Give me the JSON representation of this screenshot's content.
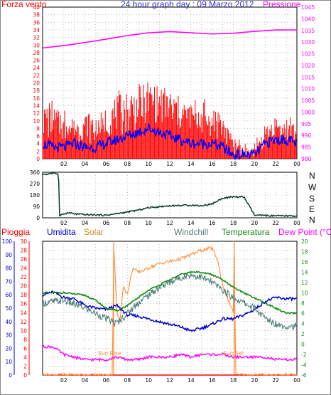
{
  "chart_data": [
    {
      "type": "line",
      "title": "24 hour graph day : 09 Marzo 2012",
      "left_label": "Forza vento",
      "right_label": "Pressione",
      "x_ticks": [
        "02",
        "04",
        "06",
        "08",
        "10",
        "12",
        "14",
        "16",
        "18",
        "20",
        "22",
        "00"
      ],
      "y_left_ticks": [
        "0",
        "2",
        "4",
        "6",
        "8",
        "10",
        "12",
        "14",
        "16",
        "18",
        "20",
        "22",
        "24",
        "26",
        "28",
        "30",
        "32",
        "34",
        "36",
        "38",
        "40"
      ],
      "y_left_range": [
        0,
        40
      ],
      "y_right_ticks": [
        "980",
        "985",
        "990",
        "995",
        "1000",
        "1005",
        "1010",
        "1015",
        "1020",
        "1025",
        "1030",
        "1035",
        "1040",
        "1045"
      ],
      "y_right_range": [
        980,
        1045
      ],
      "grid": true,
      "series": [
        {
          "role": "pressure",
          "color": "#ff00ff",
          "axis": "right",
          "x": [
            0,
            2,
            4,
            6,
            8,
            10,
            12,
            14,
            16,
            18,
            20,
            22,
            24
          ],
          "y": [
            1027.5,
            1028.5,
            1029.8,
            1031.3,
            1032.8,
            1034,
            1034.5,
            1034,
            1033.5,
            1033.8,
            1034.6,
            1035.2,
            1035.2
          ]
        },
        {
          "role": "gust",
          "color": "#ff0000",
          "axis": "left",
          "x": [
            0,
            1,
            2,
            3,
            4,
            5,
            6,
            7,
            8,
            9,
            10,
            11,
            12,
            13,
            14,
            15,
            16,
            17,
            18,
            19,
            20,
            21,
            22,
            23,
            24
          ],
          "y": [
            10,
            11,
            9,
            8,
            9,
            7,
            9,
            12,
            13,
            14,
            15,
            14,
            13,
            12,
            11,
            11,
            10,
            9,
            3,
            2,
            2,
            6,
            8,
            8,
            7
          ]
        },
        {
          "role": "average",
          "color": "#0000ff",
          "axis": "left",
          "x": [
            0,
            1,
            2,
            3,
            4,
            5,
            6,
            7,
            8,
            9,
            10,
            11,
            12,
            13,
            14,
            15,
            16,
            17,
            18,
            19,
            20,
            21,
            22,
            23,
            24
          ],
          "y": [
            4,
            3,
            3,
            4,
            3,
            3,
            4,
            5,
            6,
            7,
            8,
            7,
            6,
            5,
            4,
            4,
            4,
            3,
            1,
            1,
            1,
            4,
            5,
            5,
            4
          ]
        }
      ]
    },
    {
      "type": "line",
      "y_ticks": [
        "0",
        "90",
        "180",
        "270",
        "360"
      ],
      "y_range": [
        0,
        360
      ],
      "compass_labels": [
        "N",
        "W",
        "S",
        "E",
        "N"
      ],
      "x_ticks": [
        "02",
        "04",
        "06",
        "08",
        "10",
        "12",
        "14",
        "16",
        "18",
        "20",
        "22",
        "00"
      ],
      "grid": true,
      "series": [
        {
          "role": "direction",
          "color": "#0a3a2a",
          "x": [
            0,
            0.5,
            0.6,
            1.5,
            1.6,
            2.5,
            3,
            4,
            6,
            8,
            9,
            10,
            12,
            14,
            15,
            16,
            17,
            18,
            19,
            20,
            21,
            22,
            23,
            24
          ],
          "y": [
            345,
            345,
            350,
            350,
            20,
            40,
            30,
            25,
            20,
            45,
            60,
            80,
            95,
            100,
            95,
            110,
            155,
            165,
            165,
            20,
            18,
            15,
            15,
            15
          ]
        }
      ]
    },
    {
      "type": "line",
      "labels": [
        "Pioggia",
        "Umidita",
        "Solar",
        "Windchill",
        "Temperatura",
        "Dew Point (°C)"
      ],
      "annotations": [
        "Sun Rise",
        "Sun Set"
      ],
      "x_ticks": [
        "02",
        "04",
        "06",
        "08",
        "10",
        "12",
        "14",
        "16",
        "18",
        "20",
        "22",
        "00"
      ],
      "y_left_outer_ticks": [
        "0",
        "10",
        "20",
        "30",
        "40",
        "50",
        "60",
        "70",
        "80",
        "90",
        "100"
      ],
      "y_left_outer_range": [
        0,
        100
      ],
      "y_left_inner_ticks": [
        "0",
        "2",
        "4",
        "6",
        "8",
        "10",
        "12",
        "14",
        "16",
        "18",
        "20",
        "22",
        "24",
        "26",
        "28",
        "30"
      ],
      "y_left_inner_range": [
        0,
        30
      ],
      "y_right_ticks": [
        "-6",
        "-4",
        "-2",
        "0",
        "2",
        "4",
        "6",
        "8",
        "10",
        "12",
        "14",
        "16",
        "18",
        "20"
      ],
      "y_right_range": [
        -6,
        20
      ],
      "grid": true,
      "sun_rise_hour": 6.7,
      "sun_set_hour": 18.1,
      "series": [
        {
          "role": "humidity",
          "color": "#0000cc",
          "axis": "left_outer",
          "x": [
            0,
            1,
            2,
            3,
            4,
            5,
            6,
            7,
            8,
            9,
            10,
            11,
            12,
            13,
            14,
            15,
            16,
            17,
            18,
            19,
            20,
            21,
            22,
            23,
            24
          ],
          "y": [
            60,
            62,
            58,
            57,
            52,
            50,
            49,
            52,
            45,
            44,
            42,
            40,
            38,
            36,
            33,
            35,
            38,
            42,
            42,
            45,
            49,
            55,
            58,
            57,
            57
          ]
        },
        {
          "role": "solar",
          "color": "#ff8c33",
          "axis": "left_inner",
          "x": [
            0,
            6.6,
            6.7,
            7,
            7.3,
            7.6,
            8,
            8.5,
            9,
            10,
            11,
            12,
            13,
            14,
            15,
            16,
            16.5,
            17,
            17.5,
            18,
            18.1,
            18.2,
            24
          ],
          "y": [
            0,
            0,
            30,
            14,
            12,
            20,
            18,
            24,
            23,
            24,
            25,
            25.5,
            26,
            27,
            28,
            28.5,
            26,
            20,
            17,
            14,
            30,
            0,
            0
          ]
        },
        {
          "role": "windchill",
          "color": "#4e7f78",
          "axis": "right",
          "x": [
            0,
            2,
            4,
            5,
            6,
            7,
            8,
            9,
            10,
            11,
            12,
            13,
            14,
            15,
            16,
            17,
            18,
            19,
            20,
            21,
            22,
            23,
            24
          ],
          "y": [
            8,
            8.5,
            7,
            6,
            5,
            4,
            6,
            8,
            9.5,
            11,
            12,
            13,
            13.5,
            13,
            12,
            10.5,
            9,
            8,
            7,
            5,
            4,
            3.5,
            3.5
          ]
        },
        {
          "role": "temperature",
          "color": "#1a8a1a",
          "axis": "right",
          "x": [
            0,
            2,
            4,
            5,
            6,
            7,
            8,
            9,
            10,
            11,
            12,
            13,
            14,
            15,
            16,
            17,
            18,
            19,
            20,
            21,
            22,
            23,
            24
          ],
          "y": [
            10,
            10,
            9.5,
            8.5,
            7,
            6.5,
            7.5,
            9,
            10.5,
            11.5,
            12.5,
            13.5,
            14,
            14,
            13.5,
            12.5,
            11,
            10,
            9,
            8,
            7,
            6,
            6
          ]
        },
        {
          "role": "dewpoint",
          "color": "#ff00ff",
          "axis": "right",
          "x": [
            0,
            1,
            2,
            3,
            4,
            5,
            6,
            7,
            8,
            9,
            10,
            11,
            12,
            13,
            14,
            15,
            16,
            17,
            18,
            19,
            20,
            21,
            22,
            23,
            24
          ],
          "y": [
            -0.5,
            -0.5,
            -2,
            -2.5,
            -3,
            -3,
            -3,
            -2.5,
            -3,
            -3,
            -2.5,
            -2.5,
            -2.5,
            -2,
            -2.5,
            -2,
            -2,
            -2,
            -2.5,
            -2.5,
            -2.5,
            -2.5,
            -3,
            -3,
            -3
          ]
        },
        {
          "role": "rain",
          "color": "#ff0000",
          "axis": "left_outer",
          "x": [
            0,
            24
          ],
          "y": [
            0,
            0
          ]
        }
      ]
    }
  ]
}
